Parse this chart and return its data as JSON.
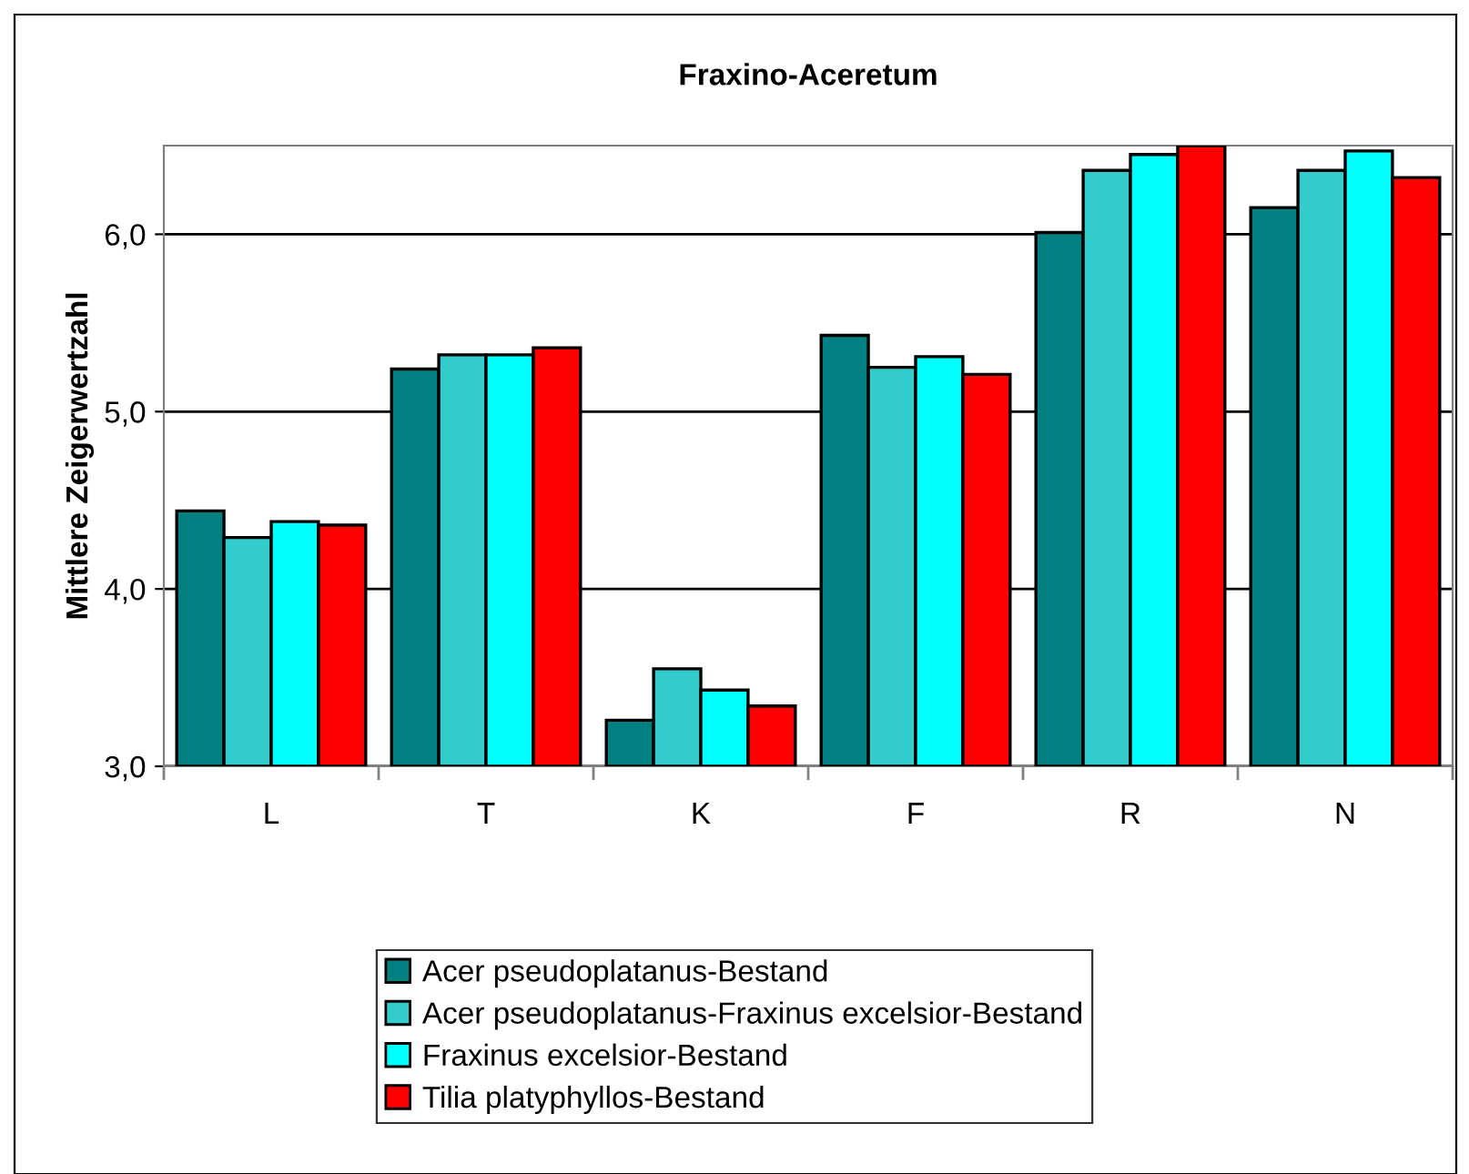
{
  "chart_data": {
    "type": "bar",
    "title": "Fraxino-Aceretum",
    "ylabel": "Mittlere Zeigerwertzahl",
    "categories": [
      "L",
      "T",
      "K",
      "F",
      "R",
      "N"
    ],
    "series": [
      {
        "name": "Acer pseudoplatanus-Bestand",
        "color": "#008080",
        "values": [
          4.44,
          5.24,
          3.26,
          5.43,
          6.01,
          6.15
        ]
      },
      {
        "name": "Acer pseudoplatanus-Fraxinus excelsior-Bestand",
        "color": "#33cccc",
        "values": [
          4.29,
          5.32,
          3.55,
          5.25,
          6.36,
          6.36
        ]
      },
      {
        "name": "Fraxinus excelsior-Bestand",
        "color": "#00ffff",
        "values": [
          4.38,
          5.32,
          3.43,
          5.31,
          6.45,
          6.47
        ]
      },
      {
        "name": "Tilia platyphyllos-Bestand",
        "color": "#ff0000",
        "values": [
          4.36,
          5.36,
          3.34,
          5.21,
          6.5,
          6.32
        ]
      }
    ],
    "ylim": [
      3,
      6.5
    ],
    "yticks": [
      {
        "value": 3,
        "label": "3,0"
      },
      {
        "value": 4,
        "label": "4,0"
      },
      {
        "value": 5,
        "label": "5,0"
      },
      {
        "value": 6,
        "label": "6,0"
      }
    ],
    "grid": "y",
    "legend": "bottom"
  }
}
